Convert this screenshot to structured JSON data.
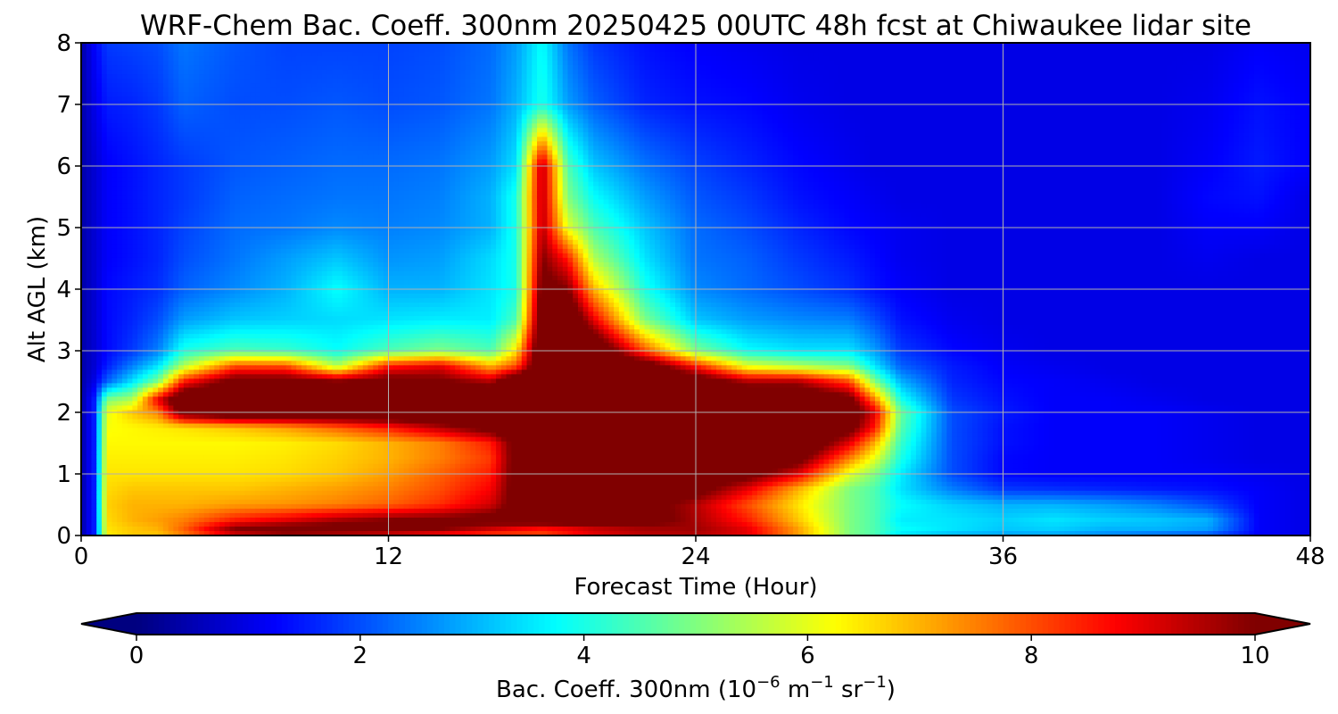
{
  "chart_data": {
    "type": "heatmap",
    "title": "WRF-Chem Bac. Coeff. 300nm  20250425 00UTC 48h fcst at Chiwaukee lidar site",
    "xlabel": "Forecast Time (Hour)",
    "ylabel": "Alt AGL (km)",
    "xlim": [
      0,
      48
    ],
    "ylim": [
      0,
      8
    ],
    "xticks": [
      "0",
      "12",
      "24",
      "36",
      "48"
    ],
    "yticks": [
      "0",
      "1",
      "2",
      "3",
      "4",
      "5",
      "6",
      "7",
      "8"
    ],
    "grid": true,
    "colorbar": {
      "label_prefix": "Bac. Coeff. 300nm  (10",
      "label_exp1": "−6",
      "label_mid": " m",
      "label_exp2": "−1",
      "label_mid2": " sr",
      "label_exp3": "−1",
      "label_suffix": ")",
      "range": [
        0,
        10
      ],
      "ticks": [
        "0",
        "2",
        "4",
        "6",
        "8",
        "10"
      ],
      "extend": "both",
      "colormap": "jet"
    },
    "x_hours": [
      0,
      0.5,
      1,
      2,
      3,
      4,
      6,
      8,
      10,
      12,
      14,
      16,
      17,
      18,
      19,
      20,
      22,
      24,
      26,
      28,
      30,
      31,
      32,
      34,
      36,
      38,
      40,
      42,
      44,
      46,
      48
    ],
    "z_km": [
      0,
      0.1,
      0.25,
      0.5,
      0.75,
      1,
      1.25,
      1.5,
      1.75,
      2,
      2.2,
      2.5,
      2.75,
      3,
      3.5,
      4,
      4.5,
      5,
      5.5,
      6,
      7,
      8
    ],
    "values": [
      [
        0.4,
        1.5,
        6.4,
        6.8,
        6.8,
        7.5,
        9.0,
        9.5,
        9.2,
        9.0,
        8.5,
        8.0,
        8.0,
        8.0,
        8.5,
        9.0,
        9.4,
        9.5,
        9.0,
        7.2,
        5.0,
        4.5,
        3.5,
        3.0,
        2.8,
        2.8,
        2.5,
        2.2,
        2.0,
        1.2,
        1.0
      ],
      [
        0.4,
        1.5,
        6.5,
        6.8,
        7.0,
        7.8,
        10.0,
        10.5,
        10.5,
        10.2,
        10.0,
        9.2,
        8.8,
        8.5,
        8.8,
        9.2,
        9.6,
        9.7,
        9.0,
        7.2,
        5.0,
        4.5,
        3.8,
        3.5,
        3.2,
        3.3,
        3.0,
        3.0,
        2.8,
        1.2,
        1.0
      ],
      [
        0.4,
        1.5,
        6.6,
        7.0,
        7.2,
        7.5,
        8.5,
        9.0,
        9.6,
        10.0,
        10.2,
        10.5,
        10.8,
        11.0,
        11.0,
        10.8,
        10.5,
        9.6,
        8.5,
        6.8,
        5.0,
        4.5,
        3.6,
        3.5,
        3.3,
        3.5,
        3.3,
        3.2,
        3.0,
        1.2,
        1.0
      ],
      [
        0.4,
        1.5,
        6.7,
        7.0,
        7.0,
        7.0,
        7.2,
        7.3,
        7.5,
        7.8,
        8.3,
        9.2,
        10.5,
        11.5,
        11.5,
        11.0,
        10.5,
        9.5,
        8.0,
        6.5,
        5.0,
        4.5,
        3.8,
        3.3,
        3.0,
        3.0,
        2.8,
        2.5,
        2.0,
        1.2,
        1.0
      ],
      [
        0.4,
        1.5,
        6.6,
        6.8,
        6.8,
        6.8,
        6.8,
        7.0,
        7.2,
        7.5,
        8.0,
        8.8,
        10.5,
        11.5,
        11.5,
        11.2,
        11.0,
        10.5,
        9.0,
        7.0,
        5.0,
        4.5,
        3.5,
        2.5,
        1.8,
        1.7,
        1.6,
        1.5,
        1.4,
        1.2,
        1.0
      ],
      [
        0.4,
        1.5,
        6.5,
        6.5,
        6.5,
        6.5,
        6.5,
        6.6,
        6.8,
        7.2,
        7.8,
        8.5,
        10.5,
        11.5,
        11.5,
        11.5,
        11.5,
        11.0,
        10.5,
        9.0,
        6.0,
        5.0,
        3.6,
        2.0,
        1.3,
        1.2,
        1.2,
        1.2,
        1.2,
        1.1,
        1.0
      ],
      [
        0.4,
        1.5,
        6.4,
        6.4,
        6.4,
        6.4,
        6.4,
        6.5,
        6.7,
        7.0,
        7.5,
        8.2,
        10.5,
        11.5,
        11.5,
        11.5,
        11.5,
        11.5,
        11.5,
        10.5,
        7.5,
        6.0,
        4.0,
        2.0,
        1.3,
        1.2,
        1.2,
        1.2,
        1.1,
        1.0,
        1.0
      ],
      [
        0.4,
        1.5,
        6.3,
        6.3,
        6.3,
        6.3,
        6.3,
        6.4,
        6.6,
        7.0,
        7.5,
        8.5,
        10.5,
        11.5,
        11.5,
        11.5,
        11.5,
        11.5,
        11.5,
        11.5,
        9.0,
        7.0,
        4.3,
        2.0,
        1.4,
        1.2,
        1.2,
        1.2,
        1.1,
        1.0,
        1.0
      ],
      [
        0.4,
        1.5,
        6.2,
        6.3,
        6.4,
        6.5,
        6.8,
        7.2,
        7.8,
        8.5,
        9.5,
        10.5,
        11.5,
        11.5,
        11.5,
        11.5,
        11.5,
        11.5,
        11.5,
        11.5,
        10.5,
        8.5,
        4.6,
        2.0,
        1.4,
        1.2,
        1.2,
        1.2,
        1.1,
        1.0,
        1.0
      ],
      [
        0.4,
        1.5,
        6.0,
        6.8,
        7.5,
        10.5,
        11.5,
        11.5,
        11.5,
        11.5,
        11.5,
        11.5,
        11.5,
        11.5,
        11.5,
        11.5,
        11.5,
        11.5,
        11.5,
        11.5,
        11.0,
        9.0,
        4.8,
        2.0,
        1.5,
        1.2,
        1.2,
        1.2,
        1.1,
        1.0,
        1.0
      ],
      [
        0.4,
        1.5,
        5.0,
        5.5,
        9.0,
        11.5,
        11.5,
        11.5,
        11.5,
        11.5,
        11.5,
        11.5,
        11.5,
        11.5,
        11.5,
        11.5,
        11.5,
        11.5,
        11.5,
        11.5,
        10.5,
        7.5,
        4.0,
        1.8,
        1.4,
        1.2,
        1.2,
        1.1,
        1.0,
        1.0,
        1.0
      ],
      [
        0.4,
        1.0,
        2.2,
        3.5,
        5.0,
        8.5,
        10.5,
        10.5,
        10.0,
        10.5,
        10.2,
        9.5,
        11.5,
        11.5,
        11.5,
        11.5,
        11.5,
        11.0,
        9.5,
        9.5,
        8.0,
        5.0,
        3.0,
        1.6,
        1.3,
        1.2,
        1.1,
        1.0,
        1.0,
        1.0,
        1.0
      ],
      [
        0.4,
        0.8,
        1.5,
        2.5,
        3.5,
        5.5,
        8.0,
        8.0,
        5.5,
        8.5,
        9.0,
        7.0,
        8.0,
        11.5,
        11.5,
        11.5,
        11.0,
        8.5,
        6.0,
        5.5,
        5.0,
        3.5,
        2.2,
        1.5,
        1.2,
        1.1,
        1.0,
        1.0,
        1.0,
        1.0,
        1.0
      ],
      [
        0.4,
        0.8,
        1.3,
        1.8,
        2.5,
        4.0,
        4.5,
        4.3,
        3.8,
        4.5,
        5.0,
        4.5,
        6.5,
        11.5,
        11.5,
        11.5,
        8.0,
        5.0,
        3.8,
        3.5,
        3.5,
        2.8,
        1.8,
        1.3,
        1.1,
        1.0,
        1.0,
        1.0,
        1.0,
        1.0,
        1.0
      ],
      [
        0.4,
        0.8,
        1.3,
        1.6,
        2.0,
        2.8,
        3.2,
        3.3,
        3.4,
        3.5,
        3.6,
        3.6,
        4.5,
        11.0,
        11.5,
        9.0,
        5.0,
        3.2,
        2.8,
        2.6,
        2.5,
        2.0,
        1.4,
        1.1,
        1.0,
        1.0,
        1.0,
        1.0,
        1.0,
        1.0,
        1.0
      ],
      [
        0.4,
        0.8,
        1.3,
        1.5,
        1.7,
        2.2,
        2.6,
        3.0,
        3.8,
        3.0,
        3.0,
        3.5,
        4.0,
        10.5,
        10.0,
        7.0,
        4.0,
        2.6,
        2.3,
        2.0,
        1.7,
        1.4,
        1.2,
        1.0,
        1.0,
        1.0,
        1.0,
        1.0,
        1.0,
        1.0,
        1.0
      ],
      [
        0.4,
        0.8,
        1.2,
        1.4,
        1.6,
        2.0,
        2.4,
        2.8,
        3.2,
        2.7,
        2.8,
        3.4,
        4.0,
        10.0,
        8.5,
        5.5,
        3.5,
        2.4,
        2.2,
        1.8,
        1.5,
        1.3,
        1.1,
        1.0,
        1.0,
        1.0,
        1.0,
        1.0,
        1.1,
        1.0,
        1.0
      ],
      [
        0.4,
        0.8,
        1.2,
        1.4,
        1.6,
        1.9,
        2.3,
        2.4,
        2.6,
        2.5,
        2.6,
        3.0,
        4.0,
        9.5,
        6.0,
        4.5,
        3.2,
        2.3,
        2.0,
        1.6,
        1.3,
        1.2,
        1.1,
        1.0,
        1.0,
        1.0,
        1.0,
        1.0,
        1.2,
        1.2,
        1.0
      ],
      [
        0.4,
        0.8,
        1.2,
        1.4,
        1.6,
        1.8,
        2.2,
        2.3,
        2.4,
        2.4,
        2.5,
        3.0,
        4.0,
        9.5,
        5.0,
        3.8,
        2.8,
        2.1,
        1.8,
        1.4,
        1.2,
        1.1,
        1.0,
        1.0,
        1.0,
        1.0,
        1.0,
        1.0,
        1.3,
        1.4,
        1.0
      ],
      [
        0.4,
        0.8,
        1.2,
        1.4,
        1.6,
        1.8,
        2.1,
        2.2,
        2.3,
        2.3,
        2.4,
        2.8,
        3.5,
        9.5,
        4.5,
        3.2,
        2.4,
        1.9,
        1.6,
        1.3,
        1.1,
        1.0,
        1.0,
        1.0,
        1.0,
        1.0,
        1.0,
        1.0,
        1.2,
        1.5,
        1.2
      ],
      [
        0.4,
        1.0,
        1.5,
        1.6,
        1.8,
        2.2,
        2.0,
        2.0,
        2.1,
        2.0,
        2.1,
        2.4,
        3.0,
        4.0,
        2.8,
        2.2,
        1.6,
        1.4,
        1.3,
        1.1,
        1.0,
        1.0,
        1.0,
        1.0,
        1.0,
        1.0,
        1.0,
        1.0,
        1.1,
        1.4,
        1.2
      ],
      [
        0.4,
        1.2,
        1.8,
        1.9,
        2.0,
        2.4,
        2.1,
        1.9,
        1.9,
        1.9,
        2.0,
        2.3,
        2.8,
        3.8,
        2.4,
        1.8,
        1.4,
        1.2,
        1.1,
        1.0,
        1.0,
        1.0,
        1.0,
        1.0,
        1.0,
        1.0,
        1.0,
        1.0,
        1.0,
        1.2,
        1.1
      ]
    ]
  }
}
